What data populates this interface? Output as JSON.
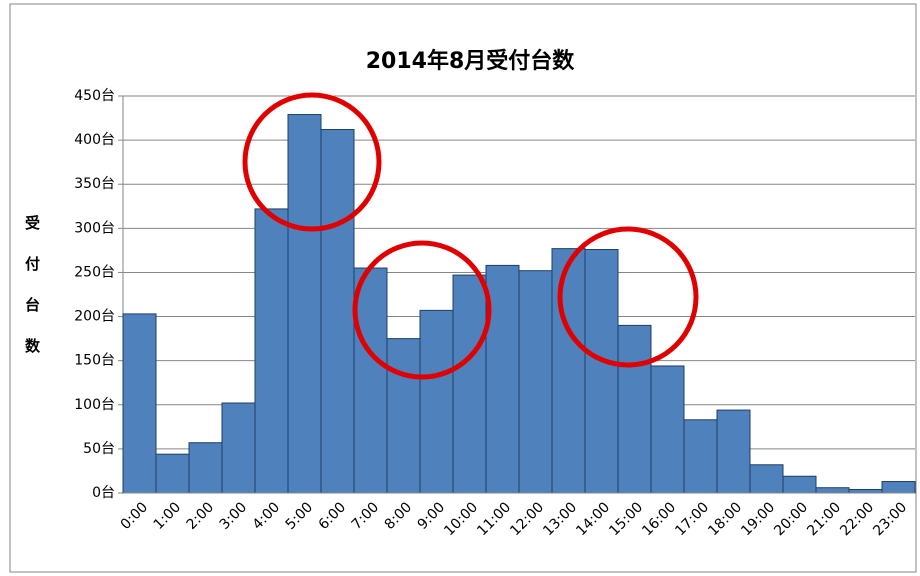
{
  "chart_data": {
    "type": "bar",
    "title": "2014年8月受付台数",
    "y_label": "受付台数",
    "categories": [
      "0:00",
      "1:00",
      "2:00",
      "3:00",
      "4:00",
      "5:00",
      "6:00",
      "7:00",
      "8:00",
      "9:00",
      "10:00",
      "11:00",
      "12:00",
      "13:00",
      "14:00",
      "15:00",
      "16:00",
      "17:00",
      "18:00",
      "19:00",
      "20:00",
      "21:00",
      "22:00",
      "23:00"
    ],
    "values": [
      203,
      44,
      57,
      102,
      322,
      429,
      412,
      255,
      175,
      207,
      247,
      258,
      252,
      277,
      276,
      190,
      144,
      83,
      94,
      32,
      19,
      6,
      4,
      13
    ],
    "color": "#4f81bd",
    "ylim": [
      0,
      450
    ],
    "yticks": [
      {
        "value": 0,
        "label": "0台"
      },
      {
        "value": 50,
        "label": "50台"
      },
      {
        "value": 100,
        "label": "100台"
      },
      {
        "value": 150,
        "label": "150台"
      },
      {
        "value": 200,
        "label": "200台"
      },
      {
        "value": 250,
        "label": "250台"
      },
      {
        "value": 300,
        "label": "300台"
      },
      {
        "value": 350,
        "label": "350台"
      },
      {
        "value": 400,
        "label": "400台"
      },
      {
        "value": 450,
        "label": "450台"
      }
    ],
    "grid": true
  }
}
